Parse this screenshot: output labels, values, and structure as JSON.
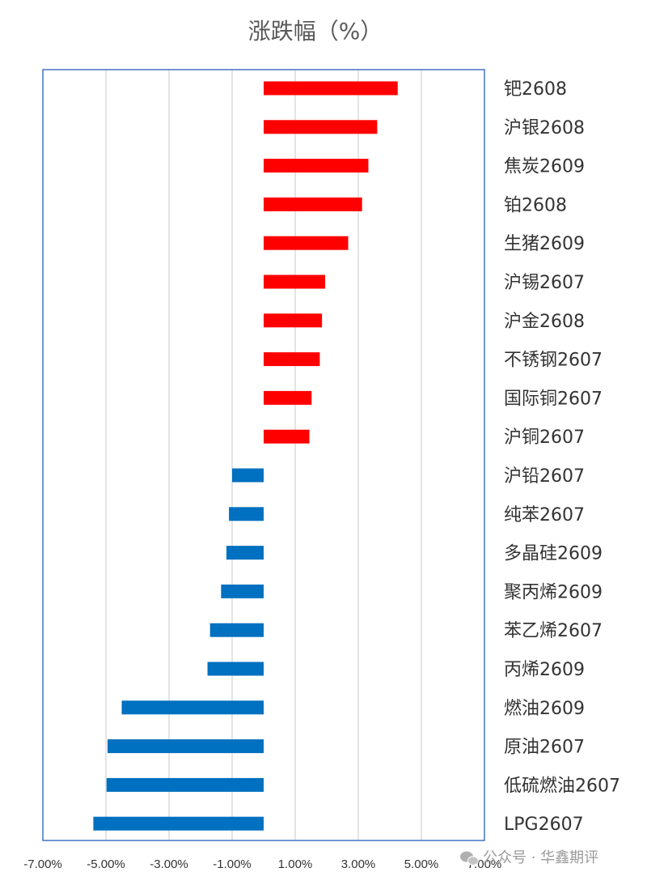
{
  "chart_data": {
    "type": "bar",
    "orientation": "horizontal",
    "title": "涨跌幅（%）",
    "xlabel": "",
    "ylabel": "",
    "xlim": [
      -7,
      7
    ],
    "x_ticks": [
      -7,
      -5,
      -3,
      -1,
      1,
      3,
      5,
      7
    ],
    "x_tick_labels": [
      "-7.00%",
      "-5.00%",
      "-3.00%",
      "-1.00%",
      "1.00%",
      "3.00%",
      "5.00%",
      "7.00%"
    ],
    "grid": true,
    "legend": "none",
    "colors": {
      "positive": "#ff0000",
      "negative": "#0070c0",
      "grid": "#c8c8c8",
      "frame": "#4472c4"
    },
    "categories": [
      "钯2608",
      "沪银2608",
      "焦炭2609",
      "铂2608",
      "生猪2609",
      "沪锡2607",
      "沪金2608",
      "不锈钢2607",
      "国际铜2607",
      "沪铜2607",
      "沪铅2607",
      "纯苯2607",
      "多晶硅2609",
      "聚丙烯2609",
      "苯乙烯2607",
      "丙烯2609",
      "燃油2609",
      "原油2607",
      "低硫燃油2607",
      "LPG2607"
    ],
    "values": [
      4.25,
      3.6,
      3.32,
      3.12,
      2.68,
      1.95,
      1.85,
      1.78,
      1.52,
      1.45,
      -1.0,
      -1.1,
      -1.18,
      -1.35,
      -1.7,
      -1.78,
      -4.5,
      -4.95,
      -4.98,
      -5.4
    ]
  },
  "watermark": {
    "icon": "wechat-icon",
    "text": "公众号 · 华鑫期评"
  }
}
